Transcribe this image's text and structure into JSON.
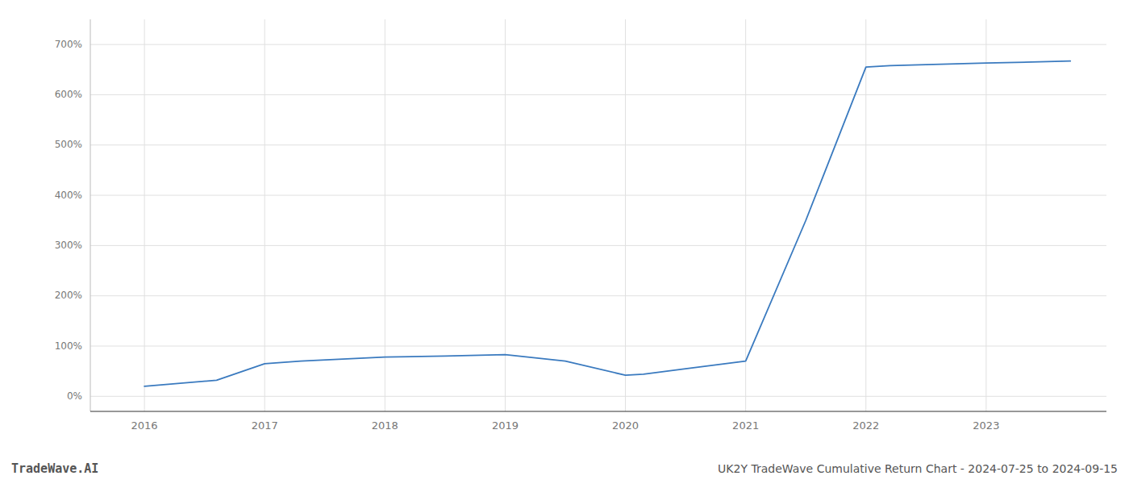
{
  "chart_data": {
    "type": "line",
    "title": "UK2Y TradeWave Cumulative Return Chart - 2024-07-25 to 2024-09-15",
    "annotations": [
      "TradeWave.AI"
    ],
    "x": [
      2016.0,
      2016.6,
      2017.0,
      2017.3,
      2018.0,
      2018.5,
      2019.0,
      2019.5,
      2020.0,
      2020.15,
      2020.5,
      2021.0,
      2021.5,
      2022.0,
      2022.2,
      2022.5,
      2023.0,
      2023.7
    ],
    "values": [
      20,
      32,
      65,
      70,
      78,
      80,
      83,
      70,
      42,
      44,
      55,
      70,
      350,
      655,
      658,
      660,
      663,
      667
    ],
    "color": "#3a7abf",
    "xlim": [
      2015.55,
      2024.0
    ],
    "ylim": [
      -30,
      750
    ],
    "xticks": [
      2016,
      2017,
      2018,
      2019,
      2020,
      2021,
      2022,
      2023
    ],
    "yticks": [
      {
        "value": 0,
        "label": "0%"
      },
      {
        "value": 100,
        "label": "100%"
      },
      {
        "value": 200,
        "label": "200%"
      },
      {
        "value": 300,
        "label": "300%"
      },
      {
        "value": 400,
        "label": "400%"
      },
      {
        "value": 500,
        "label": "500%"
      },
      {
        "value": 600,
        "label": "600%"
      },
      {
        "value": 700,
        "label": "700%"
      }
    ],
    "grid": true
  }
}
